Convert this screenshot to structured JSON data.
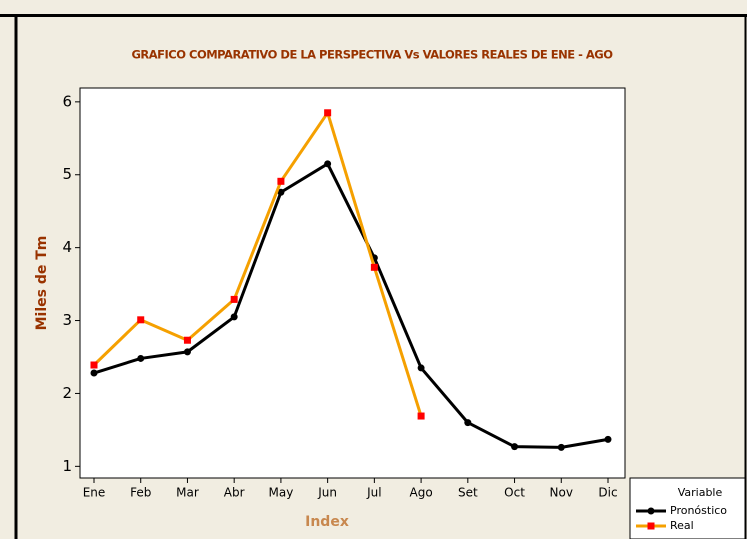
{
  "chart_data": {
    "type": "line",
    "title": "GRAFICO COMPARATIVO DE LA PERSPECTIVA Vs VALORES REALES DE ENE - AGO",
    "x_label": "Index",
    "y_label": "Miles de Tm",
    "legend_title": "Variable",
    "legend": "bottom-right",
    "categories": [
      "Ene",
      "Feb",
      "Mar",
      "Abr",
      "May",
      "Jun",
      "Jul",
      "Ago",
      "Set",
      "Oct",
      "Nov",
      "Dic"
    ],
    "series": [
      {
        "name": "Pronóstico",
        "color": "#000000",
        "marker": "circle",
        "marker_color": "#000000",
        "values": [
          2.28,
          2.48,
          2.57,
          3.05,
          4.76,
          5.15,
          3.86,
          2.35,
          1.6,
          1.27,
          1.26,
          1.37
        ]
      },
      {
        "name": "Real",
        "color": "#f5a000",
        "marker": "square",
        "marker_color": "#ff0000",
        "values": [
          2.39,
          3.01,
          2.73,
          3.29,
          4.91,
          5.85,
          3.73,
          1.69,
          null,
          null,
          null,
          null
        ]
      }
    ],
    "ylim": [
      0.84,
      6.19
    ],
    "yticks": [
      1,
      2,
      3,
      4,
      5,
      6
    ],
    "grid": false
  }
}
